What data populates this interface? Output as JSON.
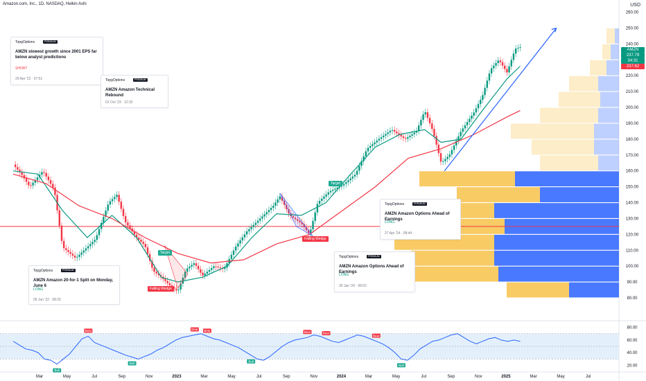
{
  "header": {
    "title": "Amazon.com, Inc., 1D, NASDAQ, Heikin Ashi",
    "currency": "USD"
  },
  "colors": {
    "up": "#089981",
    "down": "#f23645",
    "ma_fast": "#089981",
    "ma_slow": "#f23645",
    "trend": "#2962ff",
    "vp_up": "#2962ff",
    "vp_down": "#f7c24a",
    "rsi": "#2962ff",
    "rsi_band": "#e3f0fb",
    "hline": "#f23645"
  },
  "price_labels": {
    "ticker": "AMZN",
    "last": "237.79",
    "countdown": "34:31",
    "second": "237.62"
  },
  "cards": [
    {
      "source": "TopgOptions",
      "badge": "PREMIUM",
      "title": "AMZN slowest growth since 2001 EPS far below analyst predictions",
      "direction": "SHORT",
      "date": "29 Apr '22 · 07:51"
    },
    {
      "source": "TopgOptions",
      "badge": "PREMIUM",
      "title": "AMZN Amazon Technical Rebound",
      "direction": "",
      "date": "01 Oct '23 · 12:32"
    },
    {
      "source": "TopgOptions",
      "badge": "PREMIUM",
      "title": "AMZN Amazon 20-for-1 Split on Monday, June 6",
      "direction": "LONG",
      "date": "05 Jun '22 · 08:25"
    },
    {
      "source": "TopgOptions",
      "badge": "PREMIUM",
      "title": "AMZN Amazon Options Ahead of Earnings",
      "direction": "LONG",
      "date": "30 Jan '24 · 08:52"
    },
    {
      "source": "TopgOptions",
      "badge": "PREMIUM",
      "title": "AMZN Amazon Options Ahead of Earnings",
      "direction": "LONG",
      "date": "27 Apr '24 · 08:44"
    }
  ],
  "pattern_labels": {
    "target1": "Target",
    "wedge1": "Falling Wedge",
    "target2": "Target",
    "wedge2": "Falling Wedge"
  },
  "rsi_labels": {
    "bull": "Bull",
    "bear": "Bear"
  },
  "chart_data": [
    {
      "type": "candlestick",
      "title": "Amazon.com, Inc., 1D, NASDAQ, Heikin Ashi",
      "ylim": [
        80,
        262
      ],
      "y_ticks": [
        80,
        90,
        100,
        110,
        120,
        130,
        140,
        150,
        160,
        170,
        180,
        190,
        200,
        210,
        220,
        230,
        240,
        250,
        260
      ],
      "x_ticks": [
        "Mar",
        "May",
        "Jul",
        "Sep",
        "Nov",
        "2023",
        "Mar",
        "May",
        "Jul",
        "Sep",
        "Nov",
        "2024",
        "Mar",
        "May",
        "Jul",
        "Sep",
        "Nov",
        "2025",
        "Mar",
        "May",
        "Jul"
      ],
      "price_path": [
        [
          2022.0,
          164
        ],
        [
          2022.05,
          158
        ],
        [
          2022.1,
          150
        ],
        [
          2022.18,
          160
        ],
        [
          2022.25,
          148
        ],
        [
          2022.3,
          112
        ],
        [
          2022.38,
          105
        ],
        [
          2022.45,
          112
        ],
        [
          2022.5,
          117
        ],
        [
          2022.58,
          140
        ],
        [
          2022.63,
          145
        ],
        [
          2022.68,
          128
        ],
        [
          2022.75,
          118
        ],
        [
          2022.8,
          113
        ],
        [
          2022.85,
          97
        ],
        [
          2022.9,
          93
        ],
        [
          2022.95,
          88
        ],
        [
          2023.0,
          84
        ],
        [
          2023.05,
          98
        ],
        [
          2023.1,
          102
        ],
        [
          2023.15,
          94
        ],
        [
          2023.22,
          100
        ],
        [
          2023.28,
          98
        ],
        [
          2023.35,
          112
        ],
        [
          2023.42,
          122
        ],
        [
          2023.5,
          130
        ],
        [
          2023.58,
          138
        ],
        [
          2023.62,
          144
        ],
        [
          2023.68,
          132
        ],
        [
          2023.75,
          127
        ],
        [
          2023.8,
          120
        ],
        [
          2023.85,
          140
        ],
        [
          2023.92,
          147
        ],
        [
          2024.0,
          151
        ],
        [
          2024.08,
          158
        ],
        [
          2024.15,
          174
        ],
        [
          2024.22,
          180
        ],
        [
          2024.3,
          186
        ],
        [
          2024.38,
          180
        ],
        [
          2024.45,
          185
        ],
        [
          2024.5,
          198
        ],
        [
          2024.55,
          185
        ],
        [
          2024.6,
          165
        ],
        [
          2024.65,
          170
        ],
        [
          2024.72,
          185
        ],
        [
          2024.8,
          197
        ],
        [
          2024.85,
          207
        ],
        [
          2024.9,
          224
        ],
        [
          2024.95,
          230
        ],
        [
          2025.0,
          222
        ],
        [
          2025.05,
          237
        ],
        [
          2025.08,
          238
        ]
      ],
      "moving_averages": [
        {
          "name": "MA fast",
          "path": [
            [
              2022.0,
              160
            ],
            [
              2022.15,
              158
            ],
            [
              2022.3,
              135
            ],
            [
              2022.45,
              118
            ],
            [
              2022.6,
              132
            ],
            [
              2022.75,
              118
            ],
            [
              2022.9,
              93
            ],
            [
              2023.0,
              90
            ],
            [
              2023.15,
              93
            ],
            [
              2023.3,
              100
            ],
            [
              2023.45,
              118
            ],
            [
              2023.6,
              133
            ],
            [
              2023.75,
              132
            ],
            [
              2023.9,
              140
            ],
            [
              2024.05,
              158
            ],
            [
              2024.2,
              175
            ],
            [
              2024.35,
              183
            ],
            [
              2024.5,
              186
            ],
            [
              2024.6,
              178
            ],
            [
              2024.72,
              180
            ],
            [
              2024.85,
              198
            ],
            [
              2025.0,
              218
            ],
            [
              2025.08,
              226
            ]
          ]
        },
        {
          "name": "MA slow",
          "path": [
            [
              2022.0,
              158
            ],
            [
              2022.2,
              152
            ],
            [
              2022.4,
              138
            ],
            [
              2022.6,
              130
            ],
            [
              2022.8,
              118
            ],
            [
              2023.0,
              108
            ],
            [
              2023.2,
              102
            ],
            [
              2023.4,
              104
            ],
            [
              2023.6,
              114
            ],
            [
              2023.8,
              120
            ],
            [
              2024.0,
              135
            ],
            [
              2024.2,
              150
            ],
            [
              2024.4,
              168
            ],
            [
              2024.6,
              174
            ],
            [
              2024.8,
              183
            ],
            [
              2025.0,
              194
            ],
            [
              2025.08,
              198
            ]
          ]
        }
      ],
      "horizontal_level": 125,
      "trendline": [
        [
          2024.62,
          160
        ],
        [
          2025.3,
          250
        ]
      ],
      "volume_profile": [
        {
          "price": 245,
          "up": 4,
          "down": 2
        },
        {
          "price": 235,
          "up": 4,
          "down": 4
        },
        {
          "price": 225,
          "up": 8,
          "down": 6
        },
        {
          "price": 215,
          "up": 14,
          "down": 10
        },
        {
          "price": 205,
          "up": 20,
          "down": 9
        },
        {
          "price": 195,
          "up": 28,
          "down": 10
        },
        {
          "price": 185,
          "up": 40,
          "down": 12
        },
        {
          "price": 175,
          "up": 30,
          "down": 12
        },
        {
          "price": 165,
          "up": 28,
          "down": 10
        },
        {
          "price": 155,
          "up": 46,
          "down": 50
        },
        {
          "price": 145,
          "up": 40,
          "down": 38
        },
        {
          "price": 135,
          "up": 38,
          "down": 60
        },
        {
          "price": 125,
          "up": 45,
          "down": 55
        },
        {
          "price": 115,
          "up": 48,
          "down": 60
        },
        {
          "price": 105,
          "up": 40,
          "down": 60
        },
        {
          "price": 95,
          "up": 42,
          "down": 58
        },
        {
          "price": 85,
          "up": 30,
          "down": 24
        }
      ]
    },
    {
      "type": "line",
      "ylim": [
        15,
        85
      ],
      "y_ticks": [
        20,
        40,
        60,
        80
      ],
      "band": [
        30,
        70
      ],
      "values": [
        58,
        52,
        46,
        44,
        40,
        30,
        28,
        22,
        30,
        38,
        50,
        62,
        66,
        56,
        52,
        48,
        44,
        40,
        36,
        33,
        30,
        34,
        38,
        44,
        48,
        54,
        60,
        64,
        66,
        68,
        70,
        66,
        62,
        60,
        56,
        52,
        48,
        42,
        36,
        30,
        28,
        34,
        42,
        50,
        56,
        60,
        62,
        64,
        68,
        66,
        62,
        58,
        56,
        60,
        64,
        68,
        66,
        62,
        58,
        54,
        48,
        40,
        30,
        28,
        36,
        46,
        52,
        58,
        60,
        64,
        68,
        70,
        64,
        58,
        54,
        58,
        62,
        64,
        60,
        58,
        60,
        58
      ]
    }
  ]
}
